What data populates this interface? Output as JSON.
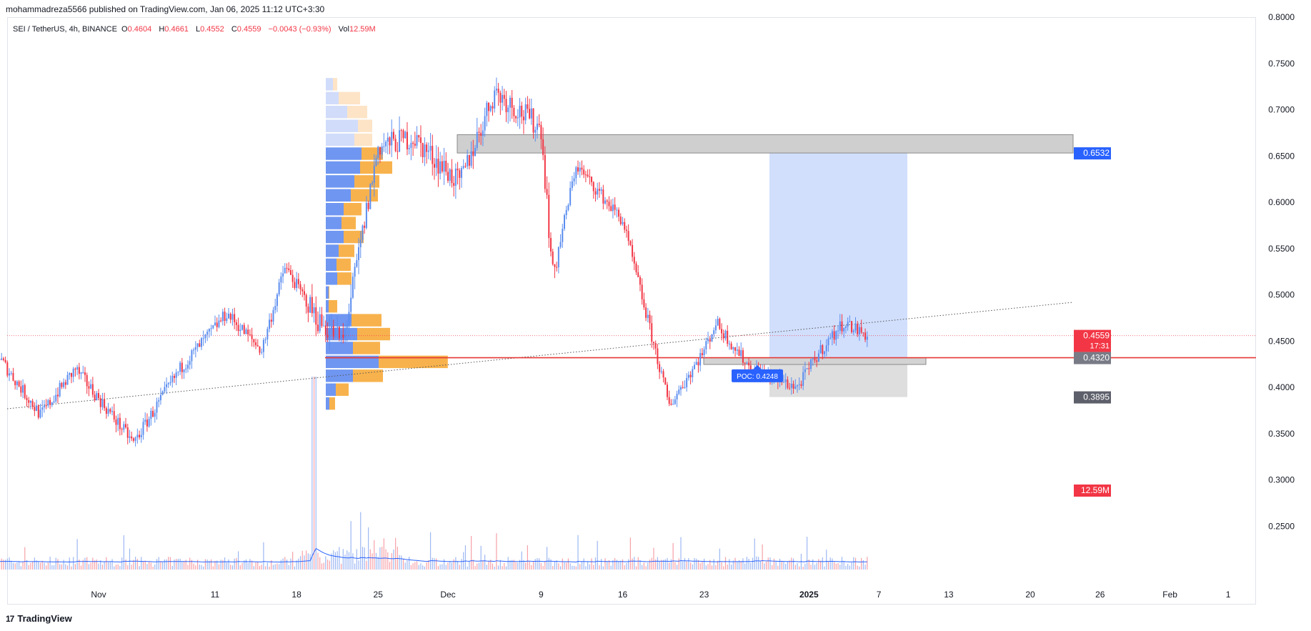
{
  "header": {
    "publish_line": "mohammadreza5566 published on TradingView.com, Jan 06, 2025 11:12 UTC+3:30"
  },
  "legend": {
    "symbol": "SEI / TetherUS, 4h, BINANCE",
    "open_label": "O",
    "open": "0.4604",
    "high_label": "H",
    "high": "0.4661",
    "low_label": "L",
    "low": "0.4552",
    "close_label": "C",
    "close": "0.4559",
    "change": "−0.0043 (−0.93%)",
    "vol_label": "Vol",
    "vol": "12.59M"
  },
  "footer": {
    "brand": "TradingView",
    "logo": "17"
  },
  "colors": {
    "up": "#5b8def",
    "down": "#f23645",
    "accent": "#2962ff",
    "poc": "#f23645"
  },
  "chart_data": {
    "type": "candlestick",
    "symbol": "SEI / TetherUS",
    "interval": "4h",
    "exchange": "BINANCE",
    "y_axis": {
      "min": 0.2,
      "max": 0.8,
      "ticks": [
        "0.8000",
        "0.7500",
        "0.7000",
        "0.6500",
        "0.6000",
        "0.5500",
        "0.5000",
        "0.4500",
        "0.4000",
        "0.3500",
        "0.3000",
        "0.2500"
      ]
    },
    "x_axis": {
      "ticks": [
        "Nov",
        "11",
        "18",
        "25",
        "Dec",
        "9",
        "16",
        "23",
        "2025",
        "7",
        "13",
        "20",
        "26",
        "Feb",
        "1"
      ]
    },
    "price_path": [
      {
        "date": "2024-10-23",
        "price": 0.44
      },
      {
        "date": "2024-10-27",
        "price": 0.37
      },
      {
        "date": "2024-10-30",
        "price": 0.42
      },
      {
        "date": "2024-11-04",
        "price": 0.34
      },
      {
        "date": "2024-11-08",
        "price": 0.42
      },
      {
        "date": "2024-11-12",
        "price": 0.48
      },
      {
        "date": "2024-11-15",
        "price": 0.44
      },
      {
        "date": "2024-11-17",
        "price": 0.53
      },
      {
        "date": "2024-11-20",
        "price": 0.47
      },
      {
        "date": "2024-11-22",
        "price": 0.45
      },
      {
        "date": "2024-11-25",
        "price": 0.66
      },
      {
        "date": "2024-11-28",
        "price": 0.67
      },
      {
        "date": "2024-12-02",
        "price": 0.62
      },
      {
        "date": "2024-12-05",
        "price": 0.72
      },
      {
        "date": "2024-12-09",
        "price": 0.68
      },
      {
        "date": "2024-12-10",
        "price": 0.52
      },
      {
        "date": "2024-12-12",
        "price": 0.64
      },
      {
        "date": "2024-12-16",
        "price": 0.58
      },
      {
        "date": "2024-12-19",
        "price": 0.43
      },
      {
        "date": "2024-12-20",
        "price": 0.38
      },
      {
        "date": "2024-12-23",
        "price": 0.44
      },
      {
        "date": "2024-12-24",
        "price": 0.47
      },
      {
        "date": "2024-12-27",
        "price": 0.42
      },
      {
        "date": "2024-12-31",
        "price": 0.4
      },
      {
        "date": "2025-01-02",
        "price": 0.44
      },
      {
        "date": "2025-01-04",
        "price": 0.47
      },
      {
        "date": "2025-01-06",
        "price": 0.4559
      }
    ],
    "volume": {
      "last": "12.59M"
    },
    "volume_profile": {
      "top": 0.735,
      "bottom": 0.375,
      "poc": 0.4248
    },
    "annotations": [
      {
        "type": "resistance_zone",
        "from": 0.6532,
        "to": 0.673
      },
      {
        "type": "support_zone",
        "from": 0.427,
        "to": 0.432
      },
      {
        "type": "horizontal_line",
        "price": 0.432
      },
      {
        "type": "long_position",
        "entry": 0.432,
        "target": 0.6532,
        "stop": 0.3895
      },
      {
        "type": "trendline",
        "style": "dotted"
      },
      {
        "type": "label",
        "text": "POC: 0.4248"
      }
    ],
    "price_labels": [
      {
        "text": "0.6532",
        "value": 0.6532,
        "color": "#2962ff"
      },
      {
        "text": "0.4559",
        "sub": "17:31",
        "value": 0.4559,
        "color": "#f23645"
      },
      {
        "text": "0.4320",
        "value": 0.432,
        "color": "#787b86"
      },
      {
        "text": "0.3895",
        "value": 0.3895,
        "color": "#5d606b"
      },
      {
        "text": "12.59M",
        "color": "#f23645"
      }
    ],
    "poc_label": "POC: 0.4248"
  }
}
